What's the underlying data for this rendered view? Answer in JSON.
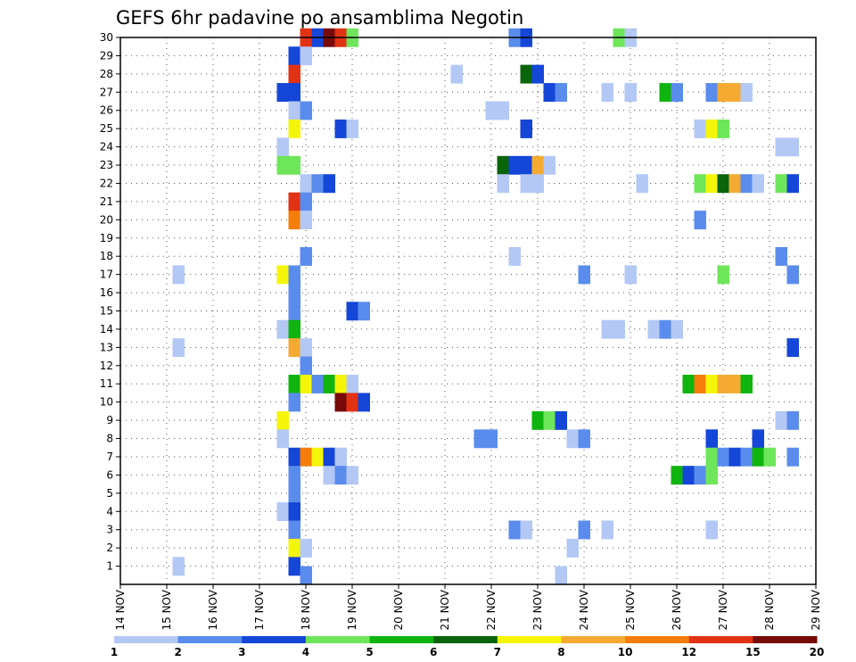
{
  "chart_data": {
    "type": "heatmap",
    "title": "GEFS 6hr padavine po ansamblima Negotin",
    "x_tick_labels": [
      "14 NOV",
      "15 NOV",
      "16 NOV",
      "17 NOV",
      "18 NOV",
      "19 NOV",
      "20 NOV",
      "21 NOV",
      "22 NOV",
      "23 NOV",
      "24 NOV",
      "25 NOV",
      "26 NOV",
      "27 NOV",
      "28 NOV",
      "29 NOV"
    ],
    "y_tick_labels": [
      "1",
      "2",
      "3",
      "4",
      "5",
      "6",
      "7",
      "8",
      "9",
      "10",
      "11",
      "12",
      "13",
      "14",
      "15",
      "16",
      "17",
      "18",
      "19",
      "20",
      "21",
      "22",
      "23",
      "24",
      "25",
      "26",
      "27",
      "28",
      "29",
      "30"
    ],
    "xlim_days": [
      14,
      29
    ],
    "ylim": [
      0,
      30
    ],
    "grid": true,
    "colorbar": {
      "position": "bottom",
      "colors": [
        "#b4c8f5",
        "#5a8ced",
        "#1446d7",
        "#6ee65a",
        "#0fb40f",
        "#0a640a",
        "#f5f50a",
        "#f5aa32",
        "#f57d0a",
        "#e13214",
        "#780a0a"
      ],
      "labels": [
        "1",
        "2",
        "3",
        "4",
        "5",
        "6",
        "7",
        "8",
        "10",
        "12",
        "15",
        "20"
      ]
    },
    "cells": [
      {
        "m": 30,
        "d": 18.0,
        "c": 9
      },
      {
        "m": 30,
        "d": 18.25,
        "c": 2
      },
      {
        "m": 30,
        "d": 18.5,
        "c": 10
      },
      {
        "m": 30,
        "d": 18.75,
        "c": 9
      },
      {
        "m": 30,
        "d": 19.0,
        "c": 3
      },
      {
        "m": 30,
        "d": 22.5,
        "c": 1
      },
      {
        "m": 30,
        "d": 22.75,
        "c": 2
      },
      {
        "m": 30,
        "d": 24.75,
        "c": 3
      },
      {
        "m": 30,
        "d": 25.0,
        "c": 0
      },
      {
        "m": 29,
        "d": 17.75,
        "c": 2
      },
      {
        "m": 29,
        "d": 18.0,
        "c": 0
      },
      {
        "m": 28,
        "d": 17.75,
        "c": 9
      },
      {
        "m": 28,
        "d": 21.25,
        "c": 0
      },
      {
        "m": 28,
        "d": 22.75,
        "c": 5
      },
      {
        "m": 28,
        "d": 23.0,
        "c": 2
      },
      {
        "m": 27,
        "d": 17.5,
        "c": 2
      },
      {
        "m": 27,
        "d": 17.75,
        "c": 2
      },
      {
        "m": 27,
        "d": 23.25,
        "c": 2
      },
      {
        "m": 27,
        "d": 23.5,
        "c": 1
      },
      {
        "m": 27,
        "d": 24.5,
        "c": 0
      },
      {
        "m": 27,
        "d": 25.0,
        "c": 0
      },
      {
        "m": 27,
        "d": 25.75,
        "c": 4
      },
      {
        "m": 27,
        "d": 26.0,
        "c": 1
      },
      {
        "m": 27,
        "d": 26.75,
        "c": 1
      },
      {
        "m": 27,
        "d": 27.0,
        "c": 7
      },
      {
        "m": 27,
        "d": 27.25,
        "c": 7
      },
      {
        "m": 27,
        "d": 27.5,
        "c": 0
      },
      {
        "m": 26,
        "d": 17.75,
        "c": 0
      },
      {
        "m": 26,
        "d": 18.0,
        "c": 1
      },
      {
        "m": 26,
        "d": 22.0,
        "c": 0
      },
      {
        "m": 26,
        "d": 22.25,
        "c": 0
      },
      {
        "m": 25,
        "d": 17.75,
        "c": 6
      },
      {
        "m": 25,
        "d": 18.75,
        "c": 2
      },
      {
        "m": 25,
        "d": 19.0,
        "c": 0
      },
      {
        "m": 25,
        "d": 22.75,
        "c": 2
      },
      {
        "m": 25,
        "d": 26.5,
        "c": 0
      },
      {
        "m": 25,
        "d": 26.75,
        "c": 6
      },
      {
        "m": 25,
        "d": 27.0,
        "c": 3
      },
      {
        "m": 24,
        "d": 17.5,
        "c": 0
      },
      {
        "m": 24,
        "d": 28.25,
        "c": 0
      },
      {
        "m": 24,
        "d": 28.5,
        "c": 0
      },
      {
        "m": 23,
        "d": 17.5,
        "c": 3
      },
      {
        "m": 23,
        "d": 17.75,
        "c": 3
      },
      {
        "m": 23,
        "d": 22.25,
        "c": 5
      },
      {
        "m": 23,
        "d": 22.5,
        "c": 2
      },
      {
        "m": 23,
        "d": 22.75,
        "c": 2
      },
      {
        "m": 23,
        "d": 23.0,
        "c": 7
      },
      {
        "m": 23,
        "d": 23.25,
        "c": 0
      },
      {
        "m": 22,
        "d": 18.0,
        "c": 0
      },
      {
        "m": 22,
        "d": 18.25,
        "c": 1
      },
      {
        "m": 22,
        "d": 18.5,
        "c": 2
      },
      {
        "m": 22,
        "d": 22.25,
        "c": 0
      },
      {
        "m": 22,
        "d": 22.75,
        "c": 0
      },
      {
        "m": 22,
        "d": 23.0,
        "c": 0
      },
      {
        "m": 22,
        "d": 25.25,
        "c": 0
      },
      {
        "m": 22,
        "d": 26.5,
        "c": 3
      },
      {
        "m": 22,
        "d": 26.75,
        "c": 6
      },
      {
        "m": 22,
        "d": 27.0,
        "c": 5
      },
      {
        "m": 22,
        "d": 27.25,
        "c": 7
      },
      {
        "m": 22,
        "d": 27.5,
        "c": 1
      },
      {
        "m": 22,
        "d": 27.75,
        "c": 0
      },
      {
        "m": 22,
        "d": 28.25,
        "c": 3
      },
      {
        "m": 22,
        "d": 28.5,
        "c": 2
      },
      {
        "m": 21,
        "d": 17.75,
        "c": 9
      },
      {
        "m": 21,
        "d": 18.0,
        "c": 1
      },
      {
        "m": 20,
        "d": 17.75,
        "c": 8
      },
      {
        "m": 20,
        "d": 18.0,
        "c": 0
      },
      {
        "m": 20,
        "d": 26.5,
        "c": 1
      },
      {
        "m": 18,
        "d": 18.0,
        "c": 1
      },
      {
        "m": 18,
        "d": 22.5,
        "c": 0
      },
      {
        "m": 18,
        "d": 28.25,
        "c": 1
      },
      {
        "m": 17,
        "d": 15.25,
        "c": 0
      },
      {
        "m": 17,
        "d": 17.5,
        "c": 6
      },
      {
        "m": 17,
        "d": 17.75,
        "c": 1
      },
      {
        "m": 17,
        "d": 24.0,
        "c": 1
      },
      {
        "m": 17,
        "d": 25.0,
        "c": 0
      },
      {
        "m": 17,
        "d": 27.0,
        "c": 3
      },
      {
        "m": 17,
        "d": 28.5,
        "c": 1
      },
      {
        "m": 16,
        "d": 17.75,
        "c": 1
      },
      {
        "m": 15,
        "d": 17.75,
        "c": 1
      },
      {
        "m": 15,
        "d": 19.0,
        "c": 2
      },
      {
        "m": 15,
        "d": 19.25,
        "c": 1
      },
      {
        "m": 14,
        "d": 17.5,
        "c": 0
      },
      {
        "m": 14,
        "d": 17.75,
        "c": 4
      },
      {
        "m": 14,
        "d": 24.5,
        "c": 0
      },
      {
        "m": 14,
        "d": 24.75,
        "c": 0
      },
      {
        "m": 14,
        "d": 25.5,
        "c": 0
      },
      {
        "m": 14,
        "d": 25.75,
        "c": 1
      },
      {
        "m": 14,
        "d": 26.0,
        "c": 0
      },
      {
        "m": 13,
        "d": 15.25,
        "c": 0
      },
      {
        "m": 13,
        "d": 17.75,
        "c": 7
      },
      {
        "m": 13,
        "d": 18.0,
        "c": 0
      },
      {
        "m": 13,
        "d": 28.5,
        "c": 2
      },
      {
        "m": 12,
        "d": 18.0,
        "c": 1
      },
      {
        "m": 11,
        "d": 17.75,
        "c": 4
      },
      {
        "m": 11,
        "d": 18.0,
        "c": 6
      },
      {
        "m": 11,
        "d": 18.25,
        "c": 1
      },
      {
        "m": 11,
        "d": 18.5,
        "c": 4
      },
      {
        "m": 11,
        "d": 18.75,
        "c": 6
      },
      {
        "m": 11,
        "d": 19.0,
        "c": 0
      },
      {
        "m": 11,
        "d": 26.25,
        "c": 4
      },
      {
        "m": 11,
        "d": 26.5,
        "c": 8
      },
      {
        "m": 11,
        "d": 26.75,
        "c": 6
      },
      {
        "m": 11,
        "d": 27.0,
        "c": 7
      },
      {
        "m": 11,
        "d": 27.25,
        "c": 7
      },
      {
        "m": 11,
        "d": 27.5,
        "c": 4
      },
      {
        "m": 10,
        "d": 17.75,
        "c": 1
      },
      {
        "m": 10,
        "d": 18.75,
        "c": 10
      },
      {
        "m": 10,
        "d": 19.0,
        "c": 9
      },
      {
        "m": 10,
        "d": 19.25,
        "c": 2
      },
      {
        "m": 9,
        "d": 17.5,
        "c": 6
      },
      {
        "m": 9,
        "d": 23.0,
        "c": 4
      },
      {
        "m": 9,
        "d": 23.25,
        "c": 3
      },
      {
        "m": 9,
        "d": 23.5,
        "c": 2
      },
      {
        "m": 9,
        "d": 28.25,
        "c": 0
      },
      {
        "m": 9,
        "d": 28.5,
        "c": 1
      },
      {
        "m": 8,
        "d": 17.5,
        "c": 0
      },
      {
        "m": 8,
        "d": 21.75,
        "c": 1
      },
      {
        "m": 8,
        "d": 22.0,
        "c": 1
      },
      {
        "m": 8,
        "d": 23.75,
        "c": 0
      },
      {
        "m": 8,
        "d": 24.0,
        "c": 1
      },
      {
        "m": 8,
        "d": 26.75,
        "c": 2
      },
      {
        "m": 8,
        "d": 27.75,
        "c": 2
      },
      {
        "m": 7,
        "d": 17.75,
        "c": 2
      },
      {
        "m": 7,
        "d": 18.0,
        "c": 8
      },
      {
        "m": 7,
        "d": 18.25,
        "c": 6
      },
      {
        "m": 7,
        "d": 18.5,
        "c": 2
      },
      {
        "m": 7,
        "d": 18.75,
        "c": 0
      },
      {
        "m": 7,
        "d": 26.75,
        "c": 3
      },
      {
        "m": 7,
        "d": 27.0,
        "c": 1
      },
      {
        "m": 7,
        "d": 27.25,
        "c": 2
      },
      {
        "m": 7,
        "d": 27.5,
        "c": 1
      },
      {
        "m": 7,
        "d": 27.75,
        "c": 4
      },
      {
        "m": 7,
        "d": 28.0,
        "c": 3
      },
      {
        "m": 7,
        "d": 28.5,
        "c": 1
      },
      {
        "m": 6,
        "d": 17.75,
        "c": 1
      },
      {
        "m": 6,
        "d": 18.5,
        "c": 0
      },
      {
        "m": 6,
        "d": 18.75,
        "c": 1
      },
      {
        "m": 6,
        "d": 19.0,
        "c": 0
      },
      {
        "m": 6,
        "d": 26.0,
        "c": 4
      },
      {
        "m": 6,
        "d": 26.25,
        "c": 2
      },
      {
        "m": 6,
        "d": 26.5,
        "c": 1
      },
      {
        "m": 6,
        "d": 26.75,
        "c": 3
      },
      {
        "m": 5,
        "d": 17.75,
        "c": 1
      },
      {
        "m": 4,
        "d": 17.5,
        "c": 0
      },
      {
        "m": 4,
        "d": 17.75,
        "c": 2
      },
      {
        "m": 3,
        "d": 17.75,
        "c": 1
      },
      {
        "m": 3,
        "d": 22.5,
        "c": 1
      },
      {
        "m": 3,
        "d": 22.75,
        "c": 0
      },
      {
        "m": 3,
        "d": 24.0,
        "c": 1
      },
      {
        "m": 3,
        "d": 24.5,
        "c": 0
      },
      {
        "m": 3,
        "d": 26.75,
        "c": 0
      },
      {
        "m": 2,
        "d": 17.75,
        "c": 6
      },
      {
        "m": 2,
        "d": 18.0,
        "c": 0
      },
      {
        "m": 2,
        "d": 23.75,
        "c": 0
      },
      {
        "m": 1,
        "d": 15.25,
        "c": 0
      },
      {
        "m": 1,
        "d": 17.75,
        "c": 2
      },
      {
        "m": 0.5,
        "d": 18.0,
        "c": 1
      },
      {
        "m": 0.5,
        "d": 23.5,
        "c": 0
      }
    ]
  }
}
